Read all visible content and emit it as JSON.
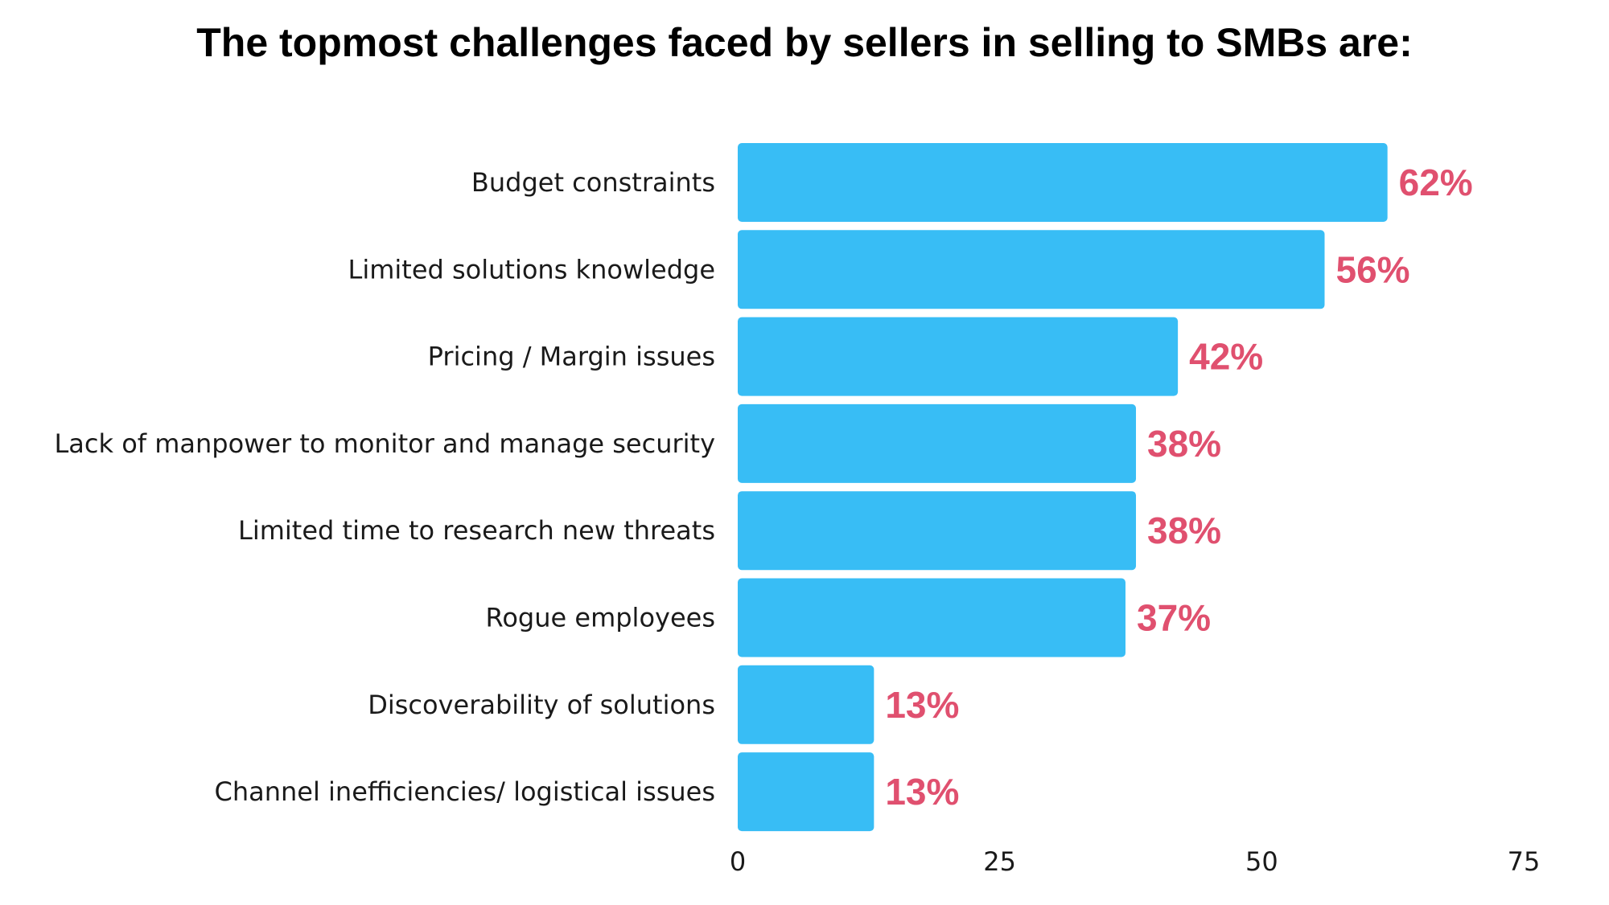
{
  "chart_data": {
    "type": "bar",
    "orientation": "horizontal",
    "title": "The topmost challenges faced by sellers in selling to SMBs are:",
    "categories": [
      "Budget constraints",
      "Limited solutions knowledge",
      "Pricing / Margin issues",
      "Lack of manpower to monitor and manage security",
      "Limited time to research new threats",
      "Rogue employees",
      "Discoverability of solutions",
      "Channel inefficiencies/ logistical issues"
    ],
    "values": [
      62,
      56,
      42,
      38,
      38,
      37,
      13,
      13
    ],
    "value_labels": [
      "62%",
      "56%",
      "42%",
      "38%",
      "38%",
      "37%",
      "13%",
      "13%"
    ],
    "xlim": [
      0,
      75
    ],
    "xticks": [
      "0",
      "25",
      "50",
      "75"
    ],
    "xlabel": "",
    "ylabel": "",
    "grid": false,
    "legend": "none",
    "colors": {
      "bar": "#38BDF5",
      "value_label": "#E0506F"
    }
  }
}
